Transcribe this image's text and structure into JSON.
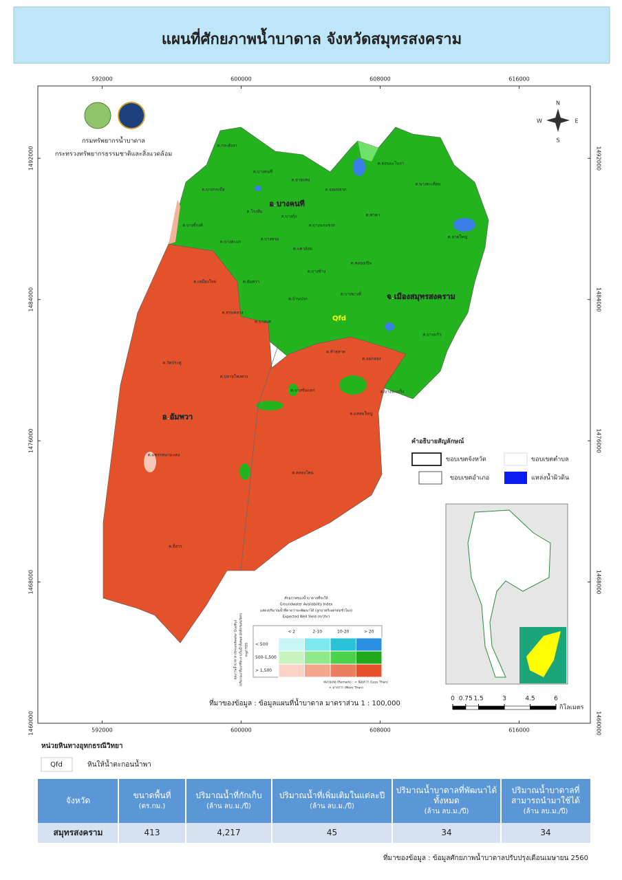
{
  "header": {
    "title": "แผนที่ศักยภาพน้ำบาดาล จังหวัดสมุทรสงคราม"
  },
  "map": {
    "xticks": [
      592000,
      600000,
      608000,
      616000
    ],
    "yticks": [
      1492000,
      1484000,
      1476000,
      1468000,
      1460000
    ],
    "xlim": [
      588300,
      620100
    ],
    "ylim": [
      1460000,
      1496100
    ],
    "agency": [
      "กรมทรัพยากรน้ำบาดาล",
      "กระทรวงทรัพยากรธรรมชาติและสิ่งแวดล้อม"
    ],
    "compass": [
      "N",
      "E",
      "S",
      "W"
    ],
    "districts": [
      "อ.บางคนที",
      "จ.เมืองสมุทรสงคราม",
      "อ.อัมพวา"
    ],
    "unit_label": "Qfd",
    "subdistricts": [
      "ต.กระดังงา",
      "ต.บางคนที",
      "ต.ยายแพง",
      "ต.ดอนมะโนรา",
      "ต.บางกระบือ",
      "ต.จอมปลวก",
      "ต.นางตะเคียน",
      "ต.โรงหีบ",
      "ต.บางกุ้ง",
      "ต.ท่าคา",
      "ต.บางยี่รงค์",
      "ต.บางนกแขวก",
      "ต.ลาดใหญ่",
      "ต.บางสะแก",
      "ต.บางพรม",
      "ต.แควอ้อม",
      "ต.คลองเขิน",
      "ต.บางช้าง",
      "ต.เหมืองใหม่",
      "ต.อัมพวา",
      "ต.บ้านปรก",
      "ต.บางนางลี่",
      "ต.สวนหลวง",
      "ต.บางแค",
      "ต.บางแก้ว",
      "ต.ท้ายหาด",
      "ต.แม่กลอง",
      "ต.วัดประดู่",
      "ต.ปลายโพงพาง",
      "ต.บางขันแตก",
      "ต.บางจะเกร็ง",
      "ต.แหลมใหญ่",
      "ต.แพรกหนามแดง",
      "ต.คลองโคน",
      "ต.ยี่สาร"
    ]
  },
  "legend": {
    "title": "คำอธิบายสัญลักษณ์",
    "items": [
      "ขอบเขตจังหวัด",
      "ขอบเขตตำบล",
      "ขอบเขตอำเภอ",
      "แหล่งน้ำผิวดิน"
    ]
  },
  "index_legend": {
    "title": [
      "ศักยภาพของน้ำบาดาลที่จะให้",
      "Groundwater Availability Index",
      "แสดงปริมาณน้ำที่คาดว่าจะพัฒนาได้ (ลูกบาศก์เมตรต่อชั่วโมง)",
      "Expected Well Yield (m³/hr)"
    ],
    "side": [
      "คุณภาพน้ำบาดาล (Groundwater Quality)",
      "(ปริมาณเกลือแร่ที่ละลายในน้ำทั้งหมด มิลลิกรัมต่อลิตร)",
      "mg/l TDS"
    ],
    "columns": [
      "< 2",
      "2-10",
      "10-20",
      "> 20"
    ],
    "rows": [
      "< 500",
      "500-1,500",
      "> 1,500"
    ],
    "notes": [
      "หมายเหตุ (Remark) : < น้อยกว่า (Less Than)",
      "> มากกว่า (More Than)"
    ]
  },
  "source": "ที่มาของข้อมูล : ข้อมูลแผนที่น้ำบาดาล มาตราส่วน 1 : 100,000",
  "scale_bar": {
    "ticks": [
      0,
      0.75,
      1.5,
      3,
      4.5,
      6
    ],
    "unit": "กิโลเมตร"
  },
  "geology": {
    "title": "หน่วยหินทางอุทกธรณีวิทยา",
    "code": "Qfd",
    "description": "หินให้น้ำตะกอนน้ำพา"
  },
  "table": {
    "header": [
      [
        "จังหวัด"
      ],
      [
        "ขนาดพื้นที่",
        "(ตร.กม.)"
      ],
      [
        "ปริมาณน้ำที่กักเก็บ",
        "(ล้าน ลบ.ม./ปี)"
      ],
      [
        "ปริมาณน้ำที่เพิ่มเติมในแต่ละปี",
        "(ล้าน ลบ.ม./ปี)"
      ],
      [
        "ปริมาณน้ำบาดาลที่พัฒนาได้",
        "ทั้งหมด",
        "(ล้าน ลบ.ม./ปี)"
      ],
      [
        "ปริมาณน้ำบาดาลที่",
        "สามารถนำมาใช้ได้",
        "(ล้าน ลบ.ม./ปี)"
      ]
    ],
    "rows": [
      [
        "สมุทรสงคราม",
        "413",
        "4,217",
        "45",
        "34",
        "34"
      ]
    ]
  },
  "footer": "ที่มาของข้อมูล : ข้อมูลศักยภาพน้ำบาดาลปรับปรุงเดือนเมษายน 2560"
}
